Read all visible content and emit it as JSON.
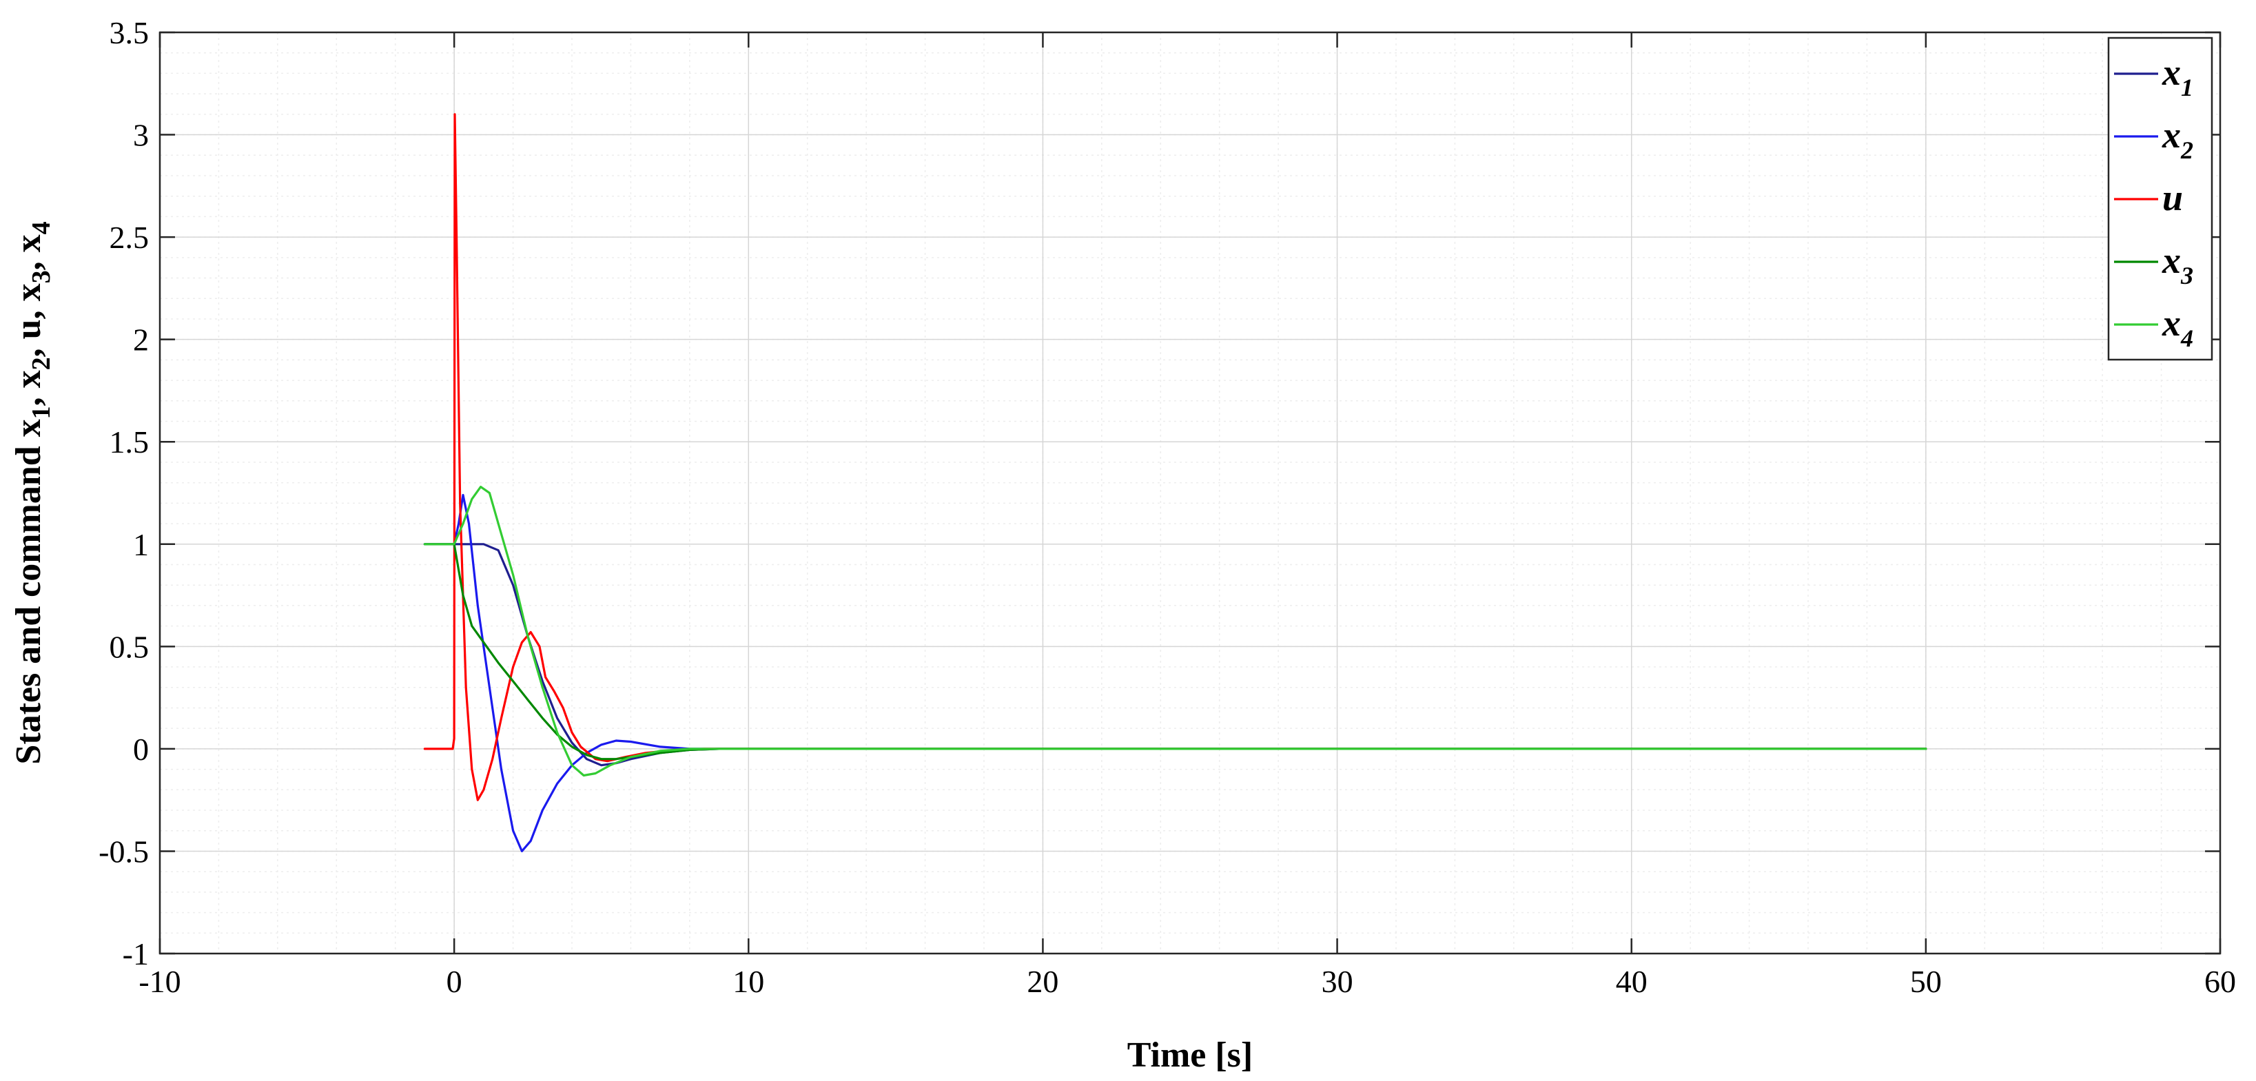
{
  "chart_data": {
    "type": "line",
    "xlabel": "Time [s]",
    "ylabel": {
      "prefix": "States and command ",
      "parts": [
        {
          "main": "x",
          "sub": "1",
          "sep": ", "
        },
        {
          "main": "x",
          "sub": "2",
          "sep": ", "
        },
        {
          "main": "u",
          "sub": "",
          "sep": ", "
        },
        {
          "main": "x",
          "sub": "3",
          "sep": ", "
        },
        {
          "main": "x",
          "sub": "4",
          "sep": ""
        }
      ]
    },
    "xlim": [
      -10,
      60
    ],
    "ylim": [
      -1,
      3.5
    ],
    "xticks": [
      -10,
      0,
      10,
      20,
      30,
      40,
      50,
      60
    ],
    "yticks": [
      -1,
      -0.5,
      0,
      0.5,
      1,
      1.5,
      2,
      2.5,
      3,
      3.5
    ],
    "xtick_labels": [
      "-10",
      "0",
      "10",
      "20",
      "30",
      "40",
      "50",
      "60"
    ],
    "ytick_labels": [
      "-1",
      "-0.5",
      "0",
      "0.5",
      "1",
      "1.5",
      "2",
      "2.5",
      "3",
      "3.5"
    ],
    "grid": true,
    "minor_grid": true,
    "legend_position": "top-right",
    "series": [
      {
        "name": "x",
        "sub": "1",
        "color": "#1f1f8f",
        "points": [
          [
            -1,
            1
          ],
          [
            0,
            1
          ],
          [
            0.5,
            1
          ],
          [
            1,
            1
          ],
          [
            1.5,
            0.97
          ],
          [
            2,
            0.8
          ],
          [
            2.5,
            0.55
          ],
          [
            3,
            0.33
          ],
          [
            3.5,
            0.15
          ],
          [
            4,
            0.03
          ],
          [
            4.5,
            -0.05
          ],
          [
            5,
            -0.08
          ],
          [
            5.5,
            -0.07
          ],
          [
            6,
            -0.05
          ],
          [
            7,
            -0.02
          ],
          [
            8,
            -0.005
          ],
          [
            9,
            0
          ],
          [
            10,
            0
          ],
          [
            50,
            0
          ]
        ]
      },
      {
        "name": "x",
        "sub": "2",
        "color": "#1a1aee",
        "points": [
          [
            -1,
            1
          ],
          [
            0,
            1
          ],
          [
            0.15,
            1.1
          ],
          [
            0.3,
            1.24
          ],
          [
            0.5,
            1.1
          ],
          [
            0.8,
            0.7
          ],
          [
            1.2,
            0.3
          ],
          [
            1.6,
            -0.1
          ],
          [
            2,
            -0.4
          ],
          [
            2.3,
            -0.5
          ],
          [
            2.6,
            -0.45
          ],
          [
            3,
            -0.3
          ],
          [
            3.5,
            -0.17
          ],
          [
            4,
            -0.08
          ],
          [
            4.5,
            -0.02
          ],
          [
            5,
            0.02
          ],
          [
            5.5,
            0.04
          ],
          [
            6,
            0.035
          ],
          [
            7,
            0.01
          ],
          [
            8,
            0
          ],
          [
            10,
            0
          ],
          [
            50,
            0
          ]
        ]
      },
      {
        "name": "u",
        "sub": "",
        "color": "#ff0000",
        "points": [
          [
            -1,
            0
          ],
          [
            -0.05,
            0
          ],
          [
            0,
            0.05
          ],
          [
            0.02,
            3.1
          ],
          [
            0.08,
            2.5
          ],
          [
            0.2,
            1.2
          ],
          [
            0.4,
            0.3
          ],
          [
            0.6,
            -0.1
          ],
          [
            0.8,
            -0.25
          ],
          [
            1,
            -0.2
          ],
          [
            1.3,
            -0.05
          ],
          [
            1.6,
            0.15
          ],
          [
            2,
            0.4
          ],
          [
            2.3,
            0.52
          ],
          [
            2.6,
            0.57
          ],
          [
            2.9,
            0.5
          ],
          [
            3.1,
            0.35
          ],
          [
            3.4,
            0.28
          ],
          [
            3.7,
            0.2
          ],
          [
            4,
            0.08
          ],
          [
            4.3,
            0.01
          ],
          [
            4.8,
            -0.05
          ],
          [
            5.2,
            -0.06
          ],
          [
            5.8,
            -0.04
          ],
          [
            6.5,
            -0.02
          ],
          [
            7.5,
            -0.005
          ],
          [
            8.5,
            0
          ],
          [
            10,
            0
          ],
          [
            50,
            0
          ]
        ]
      },
      {
        "name": "x",
        "sub": "3",
        "color": "#008800",
        "points": [
          [
            -1,
            1
          ],
          [
            0,
            1
          ],
          [
            0.3,
            0.75
          ],
          [
            0.6,
            0.6
          ],
          [
            1,
            0.52
          ],
          [
            1.5,
            0.42
          ],
          [
            2,
            0.33
          ],
          [
            2.5,
            0.24
          ],
          [
            3,
            0.15
          ],
          [
            3.5,
            0.07
          ],
          [
            4,
            0.01
          ],
          [
            4.5,
            -0.03
          ],
          [
            5,
            -0.05
          ],
          [
            5.5,
            -0.05
          ],
          [
            6,
            -0.04
          ],
          [
            7,
            -0.02
          ],
          [
            8,
            -0.005
          ],
          [
            9,
            0
          ],
          [
            10,
            0
          ],
          [
            50,
            0
          ]
        ]
      },
      {
        "name": "x",
        "sub": "4",
        "color": "#33cc33",
        "points": [
          [
            -1,
            1
          ],
          [
            0,
            1
          ],
          [
            0.3,
            1.1
          ],
          [
            0.6,
            1.22
          ],
          [
            0.9,
            1.28
          ],
          [
            1.2,
            1.25
          ],
          [
            1.5,
            1.1
          ],
          [
            2,
            0.85
          ],
          [
            2.5,
            0.55
          ],
          [
            3,
            0.3
          ],
          [
            3.5,
            0.08
          ],
          [
            4,
            -0.08
          ],
          [
            4.4,
            -0.13
          ],
          [
            4.8,
            -0.12
          ],
          [
            5.3,
            -0.08
          ],
          [
            6,
            -0.04
          ],
          [
            7,
            -0.01
          ],
          [
            8,
            0
          ],
          [
            10,
            0
          ],
          [
            50,
            0
          ]
        ]
      }
    ]
  }
}
